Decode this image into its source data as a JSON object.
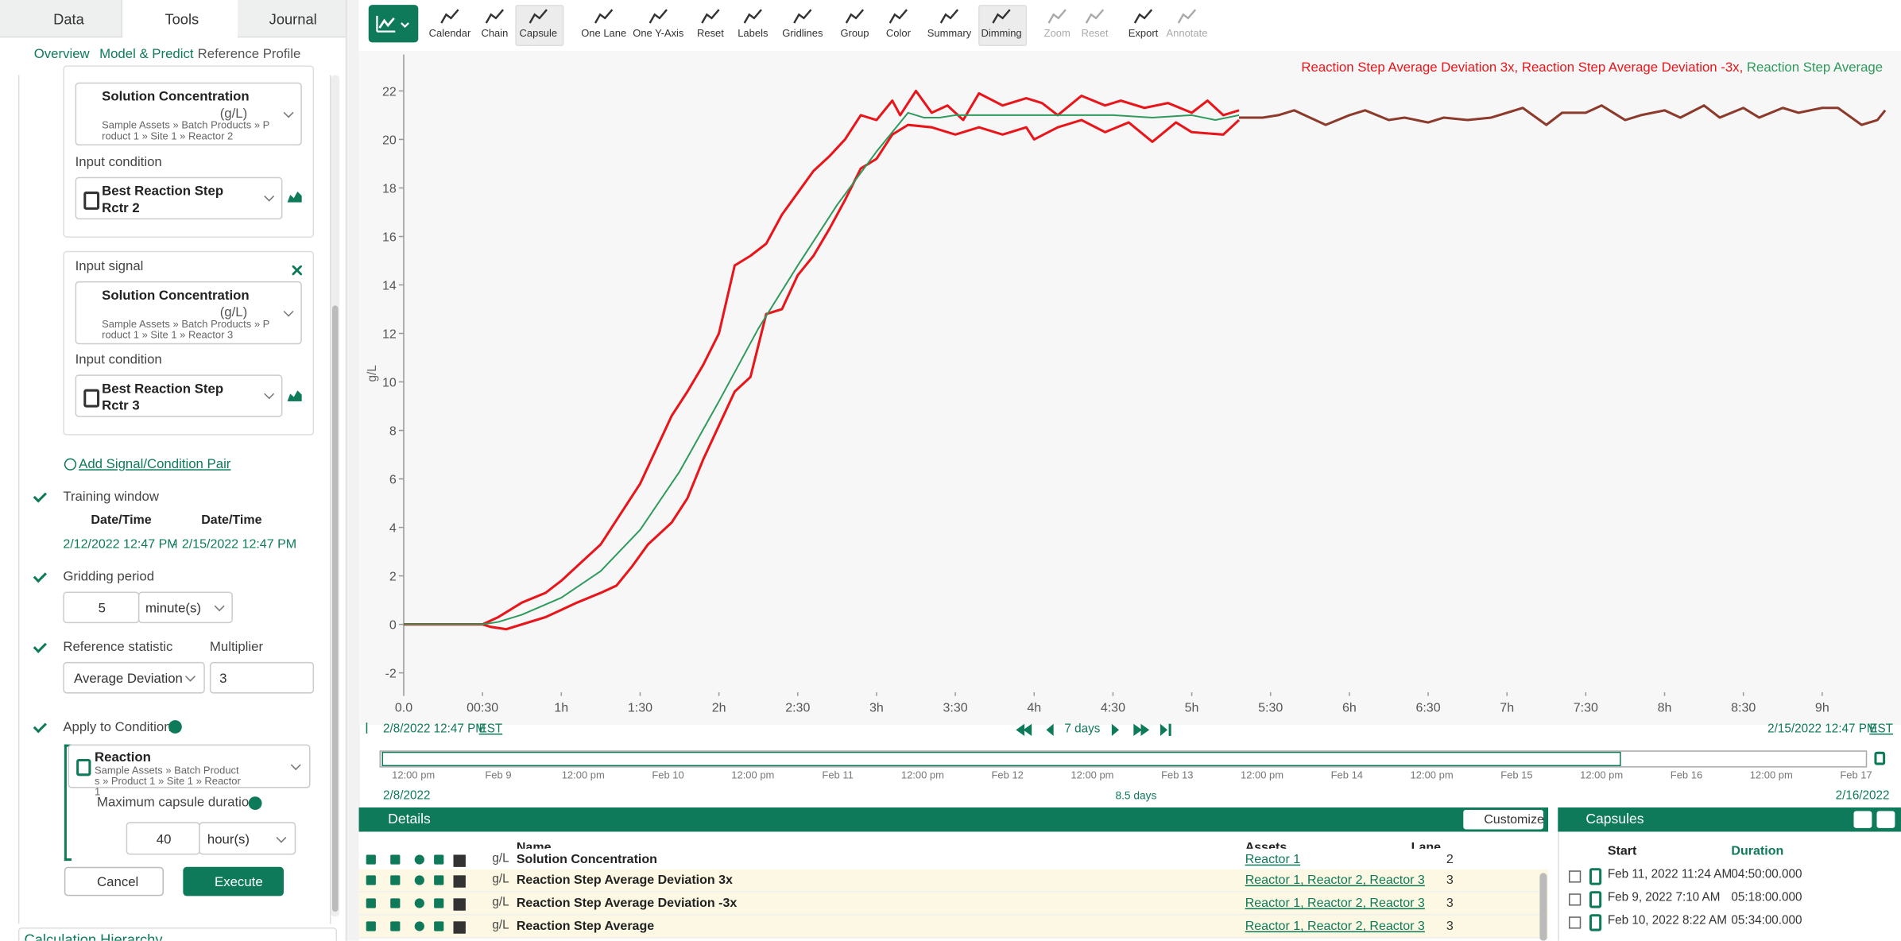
{
  "tabs": [
    "Data",
    "Tools",
    "Journal"
  ],
  "breadcrumb": [
    "Overview",
    "Model & Predict",
    "Reference Profile"
  ],
  "form": {
    "pairs": [
      {
        "signal": "Solution Concentration",
        "unit": "(g/L)",
        "path": "Sample Assets » Batch Products » Product 1 » Site 1 » Reactor 2",
        "condition_label": "Input condition",
        "condition": "Best Reaction Step Rctr 2"
      },
      {
        "signal_label": "Input signal",
        "signal": "Solution Concentration",
        "unit": "(g/L)",
        "path": "Sample Assets » Batch Products » Product 1 » Site 1 » Reactor 3",
        "condition_label": "Input condition",
        "condition": "Best Reaction Step Rctr 3"
      }
    ],
    "add_pair": "Add Signal/Condition Pair",
    "training_window": {
      "label": "Training window",
      "headers": [
        "Date/Time",
        "Date/Time"
      ],
      "start": "2/12/2022 12:47 PM",
      "separator": "-",
      "end": "2/15/2022 12:47 PM"
    },
    "gridding": {
      "label": "Gridding period",
      "value": 5,
      "unit": "minute(s)"
    },
    "statistic": {
      "label": "Reference statistic",
      "value": "Average Deviation"
    },
    "multiplier": {
      "label": "Multiplier",
      "value": 3
    },
    "apply": {
      "label": "Apply to Condition",
      "condition": "Reaction",
      "path": "Sample Assets » Batch Products » Product 1 » Site 1 » Reactor 1",
      "max_label": "Maximum capsule duration",
      "max_value": 40,
      "max_unit": "hour(s)"
    },
    "buttons": [
      "Cancel",
      "Execute"
    ],
    "hierarchy": "Calculation Hierarchy"
  },
  "toolbar": [
    {
      "label": "Calendar"
    },
    {
      "label": "Chain"
    },
    {
      "label": "Capsule",
      "active": true
    },
    {
      "label": "One Lane"
    },
    {
      "label": "One Y-Axis"
    },
    {
      "label": "Reset"
    },
    {
      "label": "Labels"
    },
    {
      "label": "Gridlines"
    },
    {
      "label": "Group"
    },
    {
      "label": "Color"
    },
    {
      "label": "Summary"
    },
    {
      "label": "Dimming",
      "active": true
    },
    {
      "label": "Zoom",
      "disabled": true
    },
    {
      "label": "Reset",
      "disabled": true
    },
    {
      "label": "Export"
    },
    {
      "label": "Annotate",
      "disabled": true
    }
  ],
  "chart_data": {
    "type": "line",
    "ylabel": "g/L",
    "legend": "top-right",
    "legend_separator": ", ",
    "grid": false,
    "xlim": [
      0,
      9.4
    ],
    "ylim": [
      -2.8,
      23.5
    ],
    "xticks": [
      {
        "value": 0,
        "label": "0.0"
      },
      {
        "value": 0.5,
        "label": "00:30"
      },
      {
        "value": 1,
        "label": "1h"
      },
      {
        "value": 1.5,
        "label": "1:30"
      },
      {
        "value": 2,
        "label": "2h"
      },
      {
        "value": 2.5,
        "label": "2:30"
      },
      {
        "value": 3,
        "label": "3h"
      },
      {
        "value": 3.5,
        "label": "3:30"
      },
      {
        "value": 4,
        "label": "4h"
      },
      {
        "value": 4.5,
        "label": "4:30"
      },
      {
        "value": 5,
        "label": "5h"
      },
      {
        "value": 5.5,
        "label": "5:30"
      },
      {
        "value": 6,
        "label": "6h"
      },
      {
        "value": 6.5,
        "label": "6:30"
      },
      {
        "value": 7,
        "label": "7h"
      },
      {
        "value": 7.5,
        "label": "7:30"
      },
      {
        "value": 8,
        "label": "8h"
      },
      {
        "value": 8.5,
        "label": "8:30"
      },
      {
        "value": 9,
        "label": "9h"
      }
    ],
    "yticks": [
      -2,
      0,
      2,
      4,
      6,
      8,
      10,
      12,
      14,
      16,
      18,
      20,
      22
    ],
    "series": [
      {
        "name": "Reaction Step Average Deviation 3x",
        "color": "#e8161b",
        "x": [
          0,
          0.5,
          0.6,
          0.75,
          0.9,
          1,
          1.1,
          1.25,
          1.35,
          1.5,
          1.6,
          1.7,
          1.8,
          1.9,
          2,
          2.1,
          2.2,
          2.3,
          2.4,
          2.5,
          2.6,
          2.7,
          2.8,
          2.9,
          3,
          3.1,
          3.15,
          3.25,
          3.35,
          3.45,
          3.55,
          3.65,
          3.8,
          3.95,
          4.05,
          4.15,
          4.3,
          4.45,
          4.55,
          4.7,
          4.85,
          5,
          5.1,
          5.2,
          5.3
        ],
        "values": [
          0,
          0,
          0.3,
          0.9,
          1.3,
          1.8,
          2.4,
          3.3,
          4.3,
          5.8,
          7.2,
          8.6,
          9.6,
          10.7,
          12,
          14.8,
          15.2,
          15.7,
          16.9,
          17.8,
          18.7,
          19.3,
          20,
          21,
          20.8,
          21.6,
          21,
          22,
          21.1,
          21.4,
          20.8,
          21.9,
          21.4,
          21.7,
          21.5,
          21,
          21.8,
          21.4,
          21.6,
          21.3,
          21.5,
          21.1,
          21.6,
          21,
          21.2
        ]
      },
      {
        "name": "Reaction Step Average Deviation -3x",
        "color": "#e8161b",
        "x": [
          0,
          0.5,
          0.55,
          0.65,
          0.75,
          0.9,
          1,
          1.1,
          1.25,
          1.35,
          1.45,
          1.55,
          1.7,
          1.8,
          1.9,
          2,
          2.1,
          2.2,
          2.3,
          2.4,
          2.5,
          2.6,
          2.7,
          2.8,
          2.9,
          3,
          3.1,
          3.2,
          3.35,
          3.5,
          3.65,
          3.8,
          3.95,
          4,
          4.15,
          4.3,
          4.45,
          4.6,
          4.75,
          4.9,
          5,
          5.2,
          5.3
        ],
        "values": [
          0,
          0,
          -0.1,
          -0.2,
          0,
          0.3,
          0.6,
          0.9,
          1.3,
          1.6,
          2.4,
          3.3,
          4.2,
          5.2,
          6.8,
          8.2,
          9.6,
          10.2,
          12.8,
          13,
          14.4,
          15.2,
          16.3,
          17.5,
          18.8,
          19.2,
          20.2,
          20.6,
          20.5,
          20.2,
          20.5,
          20.2,
          20.5,
          20,
          20.5,
          20.8,
          20.3,
          20.7,
          19.9,
          20.7,
          20.3,
          20.2,
          20.8
        ]
      },
      {
        "name": "Reaction Step Average",
        "color": "#2e9a5c",
        "x": [
          0,
          0.5,
          0.6,
          0.75,
          1,
          1.25,
          1.5,
          1.75,
          2,
          2.25,
          2.5,
          2.75,
          3,
          3.1,
          3.2,
          3.3,
          3.4,
          3.5,
          3.75,
          4,
          4.25,
          4.5,
          4.75,
          5,
          5.15,
          5.3
        ],
        "values": [
          0,
          0,
          0.1,
          0.4,
          1.1,
          2.2,
          3.9,
          6.3,
          9.2,
          12.2,
          14.8,
          17.3,
          19.5,
          20.3,
          21.1,
          20.9,
          20.9,
          21,
          21,
          21,
          21,
          21,
          20.9,
          21,
          20.8,
          21
        ]
      },
      {
        "color": "#8b3a2b",
        "x": [
          5.3,
          5.45,
          5.55,
          5.65,
          5.75,
          5.85,
          6,
          6.1,
          6.25,
          6.35,
          6.5,
          6.6,
          6.75,
          6.9,
          7,
          7.1,
          7.25,
          7.35,
          7.5,
          7.6,
          7.75,
          7.85,
          8,
          8.1,
          8.25,
          8.35,
          8.5,
          8.6,
          8.75,
          8.85,
          9,
          9.1,
          9.25,
          9.35,
          9.4
        ],
        "values": [
          20.9,
          20.9,
          21,
          21.2,
          20.9,
          20.6,
          21,
          21.2,
          20.8,
          20.9,
          20.7,
          20.9,
          20.8,
          20.9,
          21.1,
          21.3,
          20.6,
          21.1,
          21.1,
          21.4,
          20.8,
          21,
          21.2,
          20.9,
          21.4,
          20.9,
          21.3,
          20.9,
          21.3,
          21.1,
          21.3,
          21.3,
          20.6,
          20.8,
          21.2
        ]
      }
    ]
  },
  "time_range": {
    "start": "2/8/2022 12:47 PM",
    "zone": "EST",
    "span": "7 days",
    "end": "2/15/2022 12:47 PM",
    "end_zone": "EST"
  },
  "timebar": {
    "ticks": [
      "12:00 pm",
      "Feb 9",
      "12:00 pm",
      "Feb 10",
      "12:00 pm",
      "Feb 11",
      "12:00 pm",
      "Feb 12",
      "12:00 pm",
      "Feb 13",
      "12:00 pm",
      "Feb 14",
      "12:00 pm",
      "Feb 15",
      "12:00 pm",
      "Feb 16",
      "12:00 pm",
      "Feb 17"
    ],
    "start": "2/8/2022",
    "span": "8.5 days",
    "end": "2/16/2022"
  },
  "details": {
    "title": "Details",
    "customize": "Customize",
    "columns": [
      "Name",
      "Assets",
      "Lane"
    ],
    "rows": [
      {
        "unit": "g/L",
        "name": "Solution Concentration",
        "assets": "Reactor 1",
        "lane": 2
      },
      {
        "unit": "g/L",
        "name": "Reaction Step Average Deviation 3x",
        "assets": "Reactor 1, Reactor 2, Reactor 3",
        "lane": 3
      },
      {
        "unit": "g/L",
        "name": "Reaction Step Average Deviation -3x",
        "assets": "Reactor 1, Reactor 2, Reactor 3",
        "lane": 3
      },
      {
        "unit": "g/L",
        "name": "Reaction Step Average",
        "assets": "Reactor 1, Reactor 2, Reactor 3",
        "lane": 3
      }
    ]
  },
  "capsules": {
    "title": "Capsules",
    "columns": [
      "Start",
      "Duration"
    ],
    "rows": [
      [
        "Feb 11, 2022 11:24 AM",
        "04:50:00.000"
      ],
      [
        "Feb 9, 2022 7:10 AM",
        "05:18:00.000"
      ],
      [
        "Feb 10, 2022 8:22 AM",
        "05:34:00.000"
      ]
    ]
  }
}
